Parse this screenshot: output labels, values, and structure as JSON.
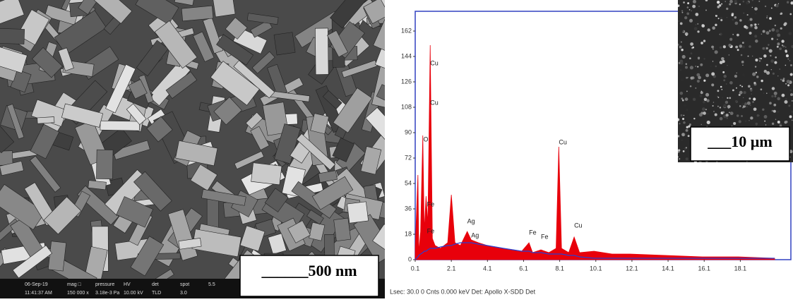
{
  "sem": {
    "scale_bar": "______500 nm",
    "info": [
      "06-Sep-19",
      "11:41:37 AM",
      "mag □",
      "150 000 x",
      "pressure",
      "3.18e-3 Pa",
      "HV",
      "10.00 kV",
      "det",
      "TLD",
      "spot",
      "3.0",
      "5.5"
    ]
  },
  "inset": {
    "scale_bar": "___10 µm"
  },
  "footer": "Lsec: 30.0 0 Cnts 0.000 keV Det: Apollo X-SDD Det",
  "chart_data": {
    "type": "area",
    "x": [
      0.1,
      0.25,
      0.3,
      0.4,
      0.52,
      0.6,
      0.7,
      0.8,
      0.93,
      1.05,
      1.2,
      1.5,
      1.9,
      2.1,
      2.3,
      2.6,
      2.98,
      3.2,
      3.6,
      4.1,
      5,
      6,
      6.4,
      6.6,
      7.06,
      7.5,
      7.9,
      8.05,
      8.2,
      8.6,
      8.9,
      9.2,
      10,
      11,
      12,
      14,
      16,
      18,
      20
    ],
    "series": [
      {
        "color": "#e8000b",
        "values": [
          8,
          60,
          5,
          20,
          88,
          20,
          45,
          25,
          152,
          15,
          10,
          8,
          12,
          46,
          12,
          10,
          20,
          14,
          12,
          10,
          8,
          6,
          12,
          5,
          7,
          5,
          8,
          80,
          8,
          5,
          16,
          5,
          6,
          4,
          4,
          3,
          2,
          2,
          1
        ]
      },
      {
        "color": "#2a3fd0",
        "values": [
          0,
          2,
          3,
          4,
          5,
          6,
          6,
          7,
          8,
          8,
          8,
          9,
          10,
          10,
          11,
          12,
          12,
          12,
          11,
          10,
          8,
          6,
          6,
          5,
          5,
          4,
          4,
          4,
          4,
          3,
          3,
          2,
          1,
          1,
          1,
          1,
          1,
          1,
          1
        ]
      }
    ],
    "peaks": [
      {
        "label": "Cu",
        "x": 0.93,
        "y": 136
      },
      {
        "label": "Cu",
        "x": 0.93,
        "y": 108
      },
      {
        "label": "O",
        "x": 0.55,
        "y": 82
      },
      {
        "label": "Fe",
        "x": 0.75,
        "y": 36
      },
      {
        "label": "Fe",
        "x": 0.75,
        "y": 17
      },
      {
        "label": "Ag",
        "x": 2.98,
        "y": 24
      },
      {
        "label": "Ag",
        "x": 3.2,
        "y": 14
      },
      {
        "label": "Fe",
        "x": 6.4,
        "y": 16
      },
      {
        "label": "Fe",
        "x": 7.06,
        "y": 13
      },
      {
        "label": "Cu",
        "x": 8.05,
        "y": 80
      },
      {
        "label": "Cu",
        "x": 8.9,
        "y": 21
      }
    ],
    "xlim": [
      0.1,
      20.9
    ],
    "ylim": [
      0,
      176
    ],
    "xticks": [
      0.1,
      2.1,
      4.1,
      6.1,
      8.1,
      10.1,
      12.1,
      14.1,
      16.1,
      18.1
    ],
    "yticks": [
      0,
      18,
      36,
      54,
      72,
      90,
      108,
      126,
      144,
      162
    ]
  }
}
